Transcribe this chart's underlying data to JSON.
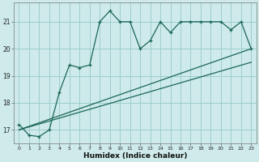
{
  "xlabel": "Humidex (Indice chaleur)",
  "bg_color": "#ceeaea",
  "grid_color": "#9ecece",
  "line_color": "#1a6655",
  "x_data": [
    0,
    1,
    2,
    3,
    4,
    5,
    6,
    7,
    8,
    9,
    10,
    11,
    12,
    13,
    14,
    15,
    16,
    17,
    18,
    19,
    20,
    21,
    22,
    23
  ],
  "main_y": [
    17.2,
    16.8,
    16.75,
    17.0,
    18.4,
    19.4,
    19.3,
    19.4,
    21.0,
    21.4,
    21.0,
    21.0,
    20.0,
    20.3,
    21.0,
    20.6,
    21.0,
    21.0,
    21.0,
    21.0,
    21.0,
    20.7,
    21.0,
    20.0
  ],
  "line2_x": [
    0,
    23
  ],
  "line2_y": [
    17.0,
    20.0
  ],
  "line3_x": [
    0,
    23
  ],
  "line3_y": [
    17.0,
    19.5
  ],
  "ylim": [
    16.5,
    21.7
  ],
  "xlim": [
    -0.5,
    23.5
  ],
  "yticks": [
    17,
    18,
    19,
    20,
    21
  ],
  "xticks": [
    0,
    1,
    2,
    3,
    4,
    5,
    6,
    7,
    8,
    9,
    10,
    11,
    12,
    13,
    14,
    15,
    16,
    17,
    18,
    19,
    20,
    21,
    22,
    23
  ]
}
